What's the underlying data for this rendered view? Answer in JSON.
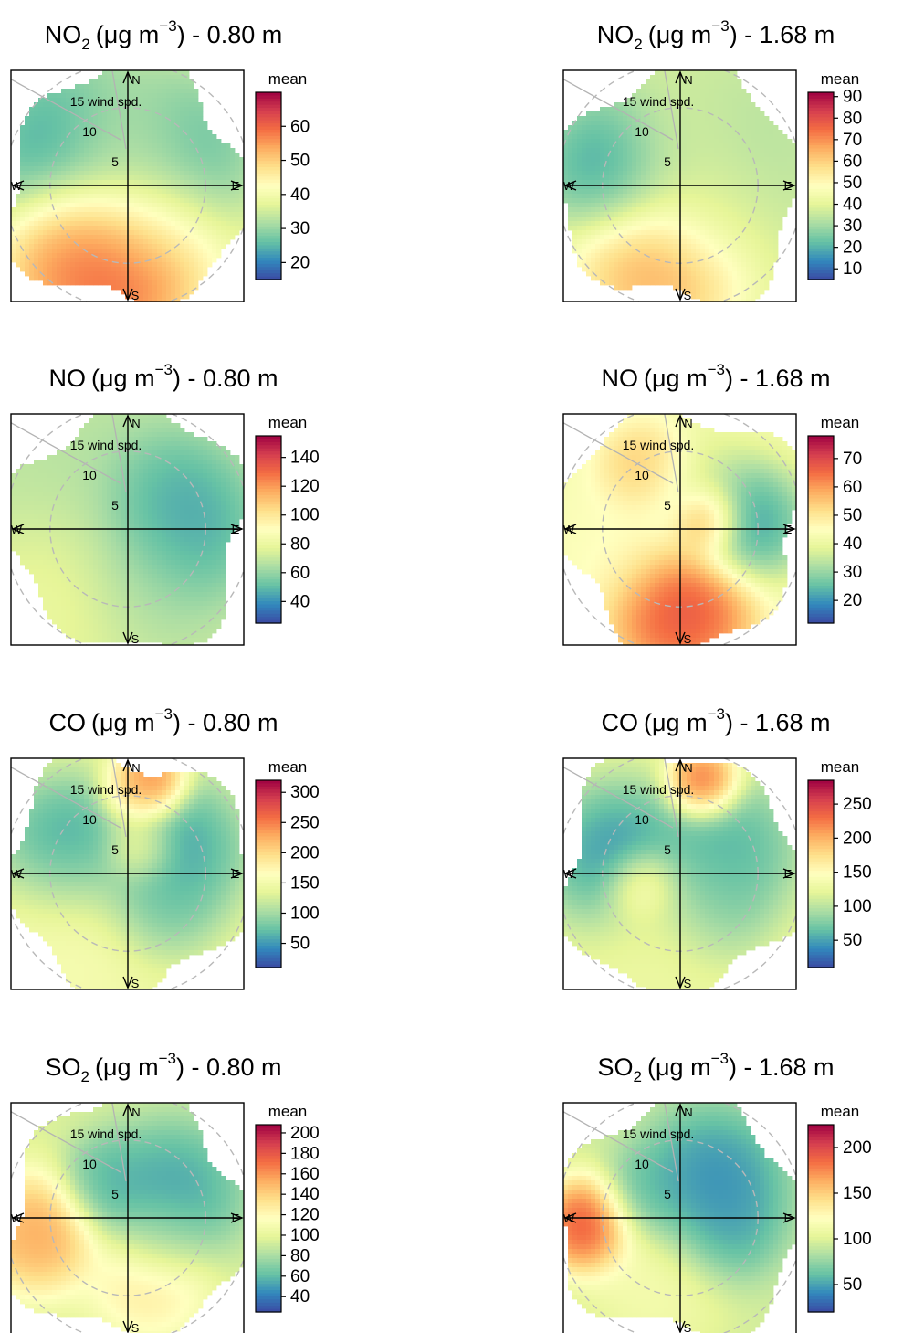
{
  "figure": {
    "legend_title": "mean",
    "ring_labels": [
      "5",
      "10",
      "15 wind spd."
    ],
    "compass": [
      "N",
      "E",
      "S",
      "W"
    ]
  },
  "chart_data": [
    {
      "type": "heatmap",
      "subtype": "polar-plot",
      "title": {
        "species": "NO",
        "subscript": "2",
        "units": "(μg m",
        "exponent": "−3",
        "suffix": ") - 0.80 m"
      },
      "legend_ticks": [
        20,
        30,
        40,
        50,
        60
      ],
      "legend_range": [
        15,
        70
      ],
      "blobs": [
        {
          "r": 5,
          "deg": 300,
          "v": 18,
          "s": 4
        },
        {
          "r": 4,
          "deg": 55,
          "v": 20,
          "s": 3.5
        },
        {
          "r": 6,
          "deg": 190,
          "v": 68,
          "s": 3.5
        },
        {
          "r": 6,
          "deg": 220,
          "v": 60,
          "s": 3
        },
        {
          "r": 3,
          "deg": 0,
          "v": 40,
          "s": 3
        },
        {
          "r": 3,
          "deg": 150,
          "v": 45,
          "s": 3
        },
        {
          "r": 16,
          "deg": 42,
          "v": 45,
          "s": 1
        }
      ],
      "base_value": 38
    },
    {
      "type": "heatmap",
      "subtype": "polar-plot",
      "title": {
        "species": "NO",
        "subscript": "2",
        "units": "(μg m",
        "exponent": "−3",
        "suffix": ") - 1.68 m"
      },
      "legend_ticks": [
        10,
        20,
        30,
        40,
        50,
        60,
        70,
        80,
        90
      ],
      "legend_range": [
        5,
        92
      ],
      "blobs": [
        {
          "r": 5,
          "deg": 285,
          "v": 10,
          "s": 3
        },
        {
          "r": 4,
          "deg": 60,
          "v": 30,
          "s": 4
        },
        {
          "r": 6,
          "deg": 195,
          "v": 75,
          "s": 3.5
        },
        {
          "r": 3,
          "deg": 0,
          "v": 40,
          "s": 3
        },
        {
          "r": 3,
          "deg": 120,
          "v": 40,
          "s": 3
        },
        {
          "r": 18,
          "deg": 30,
          "v": 90,
          "s": 1
        },
        {
          "r": 16,
          "deg": 32,
          "v": 80,
          "s": 1
        }
      ],
      "base_value": 38
    },
    {
      "type": "heatmap",
      "subtype": "polar-plot",
      "title": {
        "species": "NO",
        "subscript": "",
        "units": "(μg m",
        "exponent": "−3",
        "suffix": ") - 0.80 m"
      },
      "legend_ticks": [
        40,
        60,
        80,
        100,
        120,
        140
      ],
      "legend_range": [
        25,
        155
      ],
      "blobs": [
        {
          "r": 3,
          "deg": 60,
          "v": 40,
          "s": 3
        },
        {
          "r": 4,
          "deg": 90,
          "v": 40,
          "s": 3
        },
        {
          "r": 6,
          "deg": 230,
          "v": 85,
          "s": 4
        },
        {
          "r": 5,
          "deg": 300,
          "v": 65,
          "s": 4
        },
        {
          "r": 4,
          "deg": 170,
          "v": 60,
          "s": 3
        },
        {
          "r": 18,
          "deg": 32,
          "v": 150,
          "s": 1
        }
      ],
      "base_value": 70
    },
    {
      "type": "heatmap",
      "subtype": "polar-plot",
      "title": {
        "species": "NO",
        "subscript": "",
        "units": "(μg m",
        "exponent": "−3",
        "suffix": ") - 1.68 m"
      },
      "legend_ticks": [
        20,
        30,
        40,
        50,
        60,
        70
      ],
      "legend_range": [
        12,
        78
      ],
      "blobs": [
        {
          "r": 2,
          "deg": 70,
          "v": 76,
          "s": 1.5
        },
        {
          "r": 6,
          "deg": 180,
          "v": 76,
          "s": 3
        },
        {
          "r": 5,
          "deg": 330,
          "v": 62,
          "s": 2
        },
        {
          "r": 5,
          "deg": 85,
          "v": 15,
          "s": 2.5
        },
        {
          "r": 3,
          "deg": 10,
          "v": 35,
          "s": 2.5
        },
        {
          "r": 5,
          "deg": 260,
          "v": 45,
          "s": 3
        },
        {
          "r": 17,
          "deg": 30,
          "v": 35,
          "s": 1
        }
      ],
      "base_value": 42
    },
    {
      "type": "heatmap",
      "subtype": "polar-plot",
      "title": {
        "species": "CO",
        "subscript": "",
        "units": "(μg m",
        "exponent": "−3",
        "suffix": ") - 0.80 m"
      },
      "legend_ticks": [
        50,
        100,
        150,
        200,
        250,
        300
      ],
      "legend_range": [
        10,
        320
      ],
      "blobs": [
        {
          "r": 5,
          "deg": 290,
          "v": 20,
          "s": 3
        },
        {
          "r": 7,
          "deg": 15,
          "v": 310,
          "s": 1.5
        },
        {
          "r": 6,
          "deg": 5,
          "v": 220,
          "s": 1.5
        },
        {
          "r": 4,
          "deg": 60,
          "v": 30,
          "s": 3
        },
        {
          "r": 3,
          "deg": 130,
          "v": 60,
          "s": 2.5
        },
        {
          "r": 2,
          "deg": 25,
          "v": 210,
          "s": 1.5
        },
        {
          "r": 6,
          "deg": 230,
          "v": 160,
          "s": 4
        },
        {
          "r": 18,
          "deg": 32,
          "v": 150,
          "s": 1
        }
      ],
      "base_value": 140
    },
    {
      "type": "heatmap",
      "subtype": "polar-plot",
      "title": {
        "species": "CO",
        "subscript": "",
        "units": "(μg m",
        "exponent": "−3",
        "suffix": ") - 1.68 m"
      },
      "legend_ticks": [
        50,
        100,
        150,
        200,
        250
      ],
      "legend_range": [
        10,
        285
      ],
      "blobs": [
        {
          "r": 5,
          "deg": 285,
          "v": 20,
          "s": 3
        },
        {
          "r": 7,
          "deg": 15,
          "v": 280,
          "s": 1.5
        },
        {
          "r": 4,
          "deg": 60,
          "v": 40,
          "s": 3
        },
        {
          "r": 3,
          "deg": 130,
          "v": 60,
          "s": 2.5
        },
        {
          "r": 4,
          "deg": 200,
          "v": 130,
          "s": 3
        },
        {
          "r": 3,
          "deg": 250,
          "v": 200,
          "s": 1.5
        },
        {
          "r": 18,
          "deg": 30,
          "v": 110,
          "s": 1
        }
      ],
      "base_value": 125
    },
    {
      "type": "heatmap",
      "subtype": "polar-plot",
      "title": {
        "species": "SO",
        "subscript": "2",
        "units": "(μg m",
        "exponent": "−3",
        "suffix": ") - 0.80 m"
      },
      "legend_ticks": [
        40,
        60,
        80,
        100,
        120,
        140,
        160,
        180,
        200
      ],
      "legend_range": [
        25,
        208
      ],
      "blobs": [
        {
          "r": 7,
          "deg": 260,
          "v": 170,
          "s": 2.5
        },
        {
          "r": 5,
          "deg": 160,
          "v": 140,
          "s": 2.5
        },
        {
          "r": 4,
          "deg": 60,
          "v": 40,
          "s": 3
        },
        {
          "r": 3,
          "deg": 330,
          "v": 50,
          "s": 2
        },
        {
          "r": 3,
          "deg": 120,
          "v": 70,
          "s": 2
        },
        {
          "r": 18,
          "deg": 32,
          "v": 200,
          "s": 1
        }
      ],
      "base_value": 95
    },
    {
      "type": "heatmap",
      "subtype": "polar-plot",
      "title": {
        "species": "SO",
        "subscript": "2",
        "units": "(μg m",
        "exponent": "−3",
        "suffix": ") - 1.68 m"
      },
      "legend_ticks": [
        50,
        100,
        150,
        200
      ],
      "legend_range": [
        20,
        225
      ],
      "blobs": [
        {
          "r": 7,
          "deg": 265,
          "v": 225,
          "s": 2
        },
        {
          "r": 4,
          "deg": 40,
          "v": 30,
          "s": 3
        },
        {
          "r": 3,
          "deg": 100,
          "v": 40,
          "s": 2.5
        },
        {
          "r": 3,
          "deg": 300,
          "v": 50,
          "s": 2
        },
        {
          "r": 5,
          "deg": 200,
          "v": 120,
          "s": 3
        },
        {
          "r": 18,
          "deg": 30,
          "v": 200,
          "s": 1
        }
      ],
      "base_value": 95
    }
  ]
}
